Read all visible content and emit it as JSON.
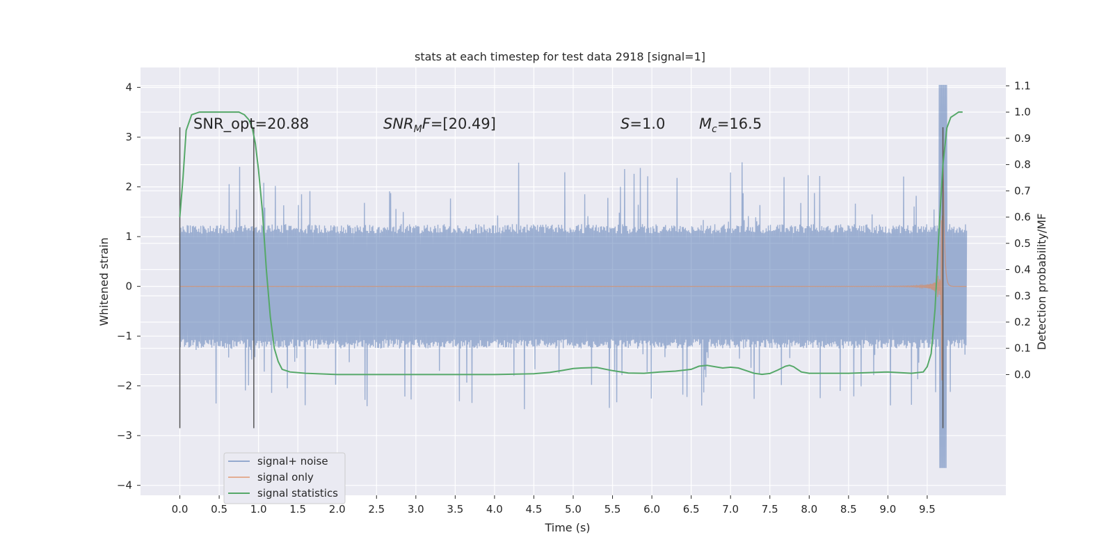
{
  "chart_data": {
    "type": "line",
    "title": "stats at each timestep for test data 2918 [signal=1]",
    "xlabel": "Time (s)",
    "ylabel_left": "Whitened strain",
    "ylabel_right": "Detection probability/MF",
    "xlim": [
      -0.5,
      10.5
    ],
    "ylim_left": [
      -4.2,
      4.4
    ],
    "ylim_right": [
      -0.46,
      1.17
    ],
    "x_ticks": [
      "0.0",
      "0.5",
      "1.0",
      "1.5",
      "2.0",
      "2.5",
      "3.0",
      "3.5",
      "4.0",
      "4.5",
      "5.0",
      "5.5",
      "6.0",
      "6.5",
      "7.0",
      "7.5",
      "8.0",
      "8.5",
      "9.0",
      "9.5"
    ],
    "y_ticks_left": [
      "4",
      "3",
      "2",
      "1",
      "0",
      "−1",
      "−2",
      "−3",
      "−4"
    ],
    "y_ticks_right": [
      "1.1",
      "1.0",
      "0.9",
      "0.8",
      "0.7",
      "0.6",
      "0.5",
      "0.4",
      "0.3",
      "0.2",
      "0.1",
      "0.0"
    ],
    "grid": true,
    "legend_position": "lower-left",
    "legend": [
      "signal+ noise",
      "signal only",
      "signal statistics"
    ],
    "colors": {
      "noise": "#4c72b0",
      "signal": "#dd8452",
      "stats": "#55a868",
      "vline": "#555555",
      "background": "#eaeaf2",
      "grid": "#ffffff"
    },
    "annotations": {
      "snr_opt_label": "SNR_opt",
      "snr_opt_value": "=20.88",
      "snr_mf_label": "SNR",
      "snr_mf_sub": "M",
      "snr_mf_suffix": "F",
      "snr_mf_value": "=[20.49]",
      "s_label": "S",
      "s_value": "=1.0",
      "mc_label": "M",
      "mc_sub": "c",
      "mc_value": "=16.5"
    },
    "vertical_lines_x": [
      0.0,
      0.94,
      9.7
    ],
    "vertical_lines_range_left": [
      -2.85,
      3.2
    ],
    "noise_envelope": {
      "x_range": [
        0.0,
        10.0
      ],
      "band_abs": 1.25,
      "spike_max": 2.5,
      "spike_min": -2.35
    },
    "signal_only": {
      "x_range": [
        0.0,
        10.0
      ],
      "merger_time": 9.7,
      "peak_amplitude": 3.5,
      "amplitude_at_5s": 0.04
    },
    "signal_statistics": {
      "x": [
        0.0,
        0.04,
        0.08,
        0.15,
        0.25,
        0.35,
        0.5,
        0.65,
        0.75,
        0.82,
        0.88,
        0.92,
        0.96,
        1.0,
        1.05,
        1.1,
        1.15,
        1.2,
        1.25,
        1.3,
        1.4,
        1.6,
        2.0,
        3.0,
        4.0,
        4.5,
        4.7,
        4.85,
        5.0,
        5.1,
        5.3,
        5.5,
        5.7,
        5.9,
        6.1,
        6.3,
        6.5,
        6.6,
        6.7,
        6.8,
        6.9,
        7.0,
        7.1,
        7.2,
        7.3,
        7.4,
        7.5,
        7.6,
        7.7,
        7.75,
        7.8,
        7.9,
        8.0,
        8.5,
        9.0,
        9.3,
        9.45,
        9.5,
        9.55,
        9.6,
        9.65,
        9.7,
        9.75,
        9.8,
        9.85,
        9.9,
        9.95
      ],
      "y": [
        0.6,
        0.75,
        0.93,
        0.99,
        1.0,
        1.0,
        1.0,
        1.0,
        1.0,
        0.99,
        0.97,
        0.94,
        0.88,
        0.78,
        0.62,
        0.4,
        0.22,
        0.1,
        0.05,
        0.02,
        0.01,
        0.005,
        0.0,
        0.0,
        0.0,
        0.003,
        0.008,
        0.015,
        0.023,
        0.025,
        0.027,
        0.015,
        0.006,
        0.005,
        0.01,
        0.013,
        0.02,
        0.032,
        0.035,
        0.03,
        0.025,
        0.028,
        0.025,
        0.015,
        0.005,
        0.001,
        0.004,
        0.017,
        0.032,
        0.035,
        0.03,
        0.01,
        0.005,
        0.005,
        0.01,
        0.005,
        0.01,
        0.03,
        0.08,
        0.25,
        0.55,
        0.8,
        0.94,
        0.98,
        0.99,
        1.0,
        1.0
      ]
    }
  }
}
